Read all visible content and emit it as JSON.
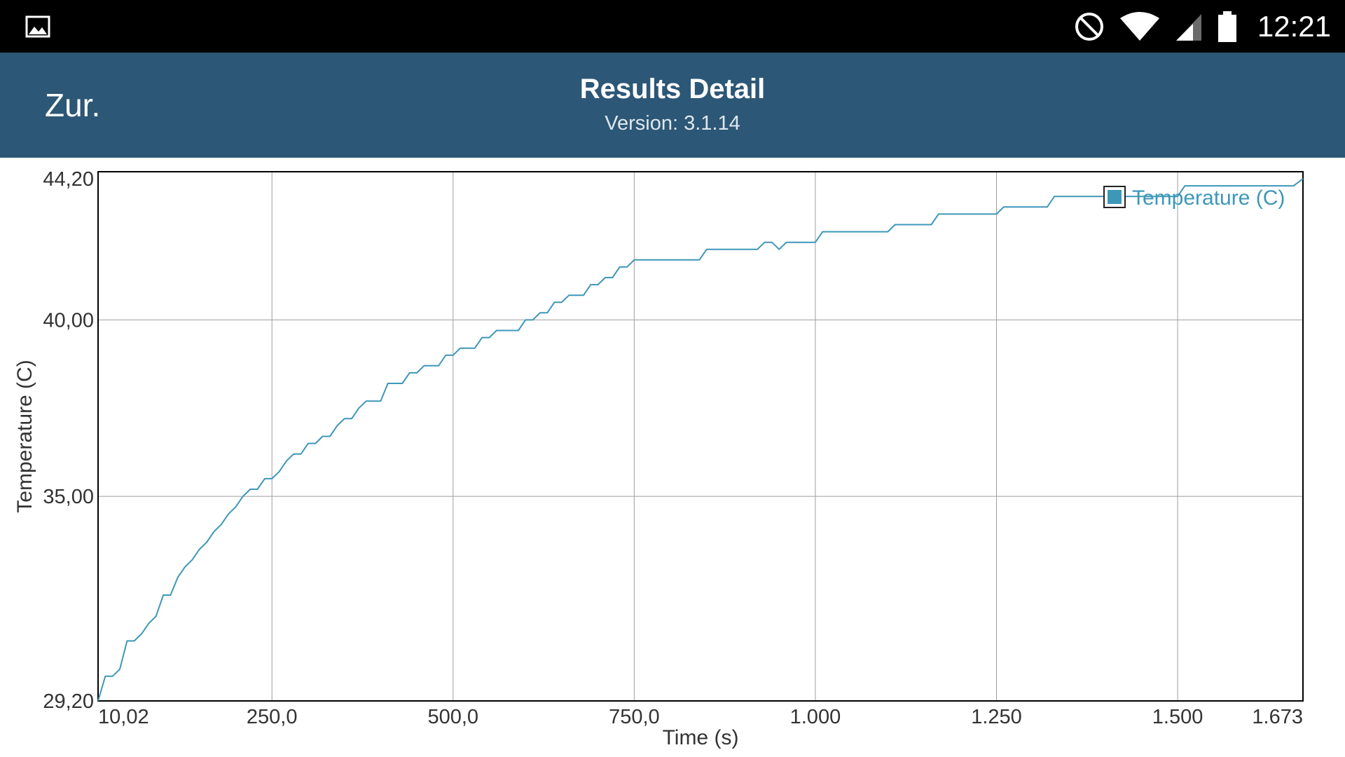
{
  "status_bar": {
    "time": "12:21",
    "icons": [
      "image-notification-icon",
      "do-not-disturb-icon",
      "wifi-icon",
      "cell-signal-icon",
      "battery-icon"
    ]
  },
  "toolbar": {
    "back_label": "Zur.",
    "title": "Results Detail",
    "subtitle": "Version: 3.1.14"
  },
  "colors": {
    "toolbar": "#2c5776",
    "series": "#3d97b9"
  },
  "chart_data": {
    "type": "line",
    "title": "",
    "xlabel": "Time (s)",
    "ylabel": "Temperature (C)",
    "xlim": [
      10.02,
      1673
    ],
    "ylim": [
      29.2,
      44.2
    ],
    "x_ticks": [
      {
        "value": 10.02,
        "label": "10,02"
      },
      {
        "value": 250,
        "label": "250,0"
      },
      {
        "value": 500,
        "label": "500,0"
      },
      {
        "value": 750,
        "label": "750,0"
      },
      {
        "value": 1000,
        "label": "1.000"
      },
      {
        "value": 1250,
        "label": "1.250"
      },
      {
        "value": 1500,
        "label": "1.500"
      },
      {
        "value": 1673,
        "label": "1.673"
      }
    ],
    "y_ticks": [
      {
        "value": 29.2,
        "label": "29,20"
      },
      {
        "value": 35,
        "label": "35,00"
      },
      {
        "value": 40,
        "label": "40,00"
      },
      {
        "value": 44.2,
        "label": "44,20"
      }
    ],
    "grid": true,
    "legend": "top-right",
    "series": [
      {
        "name": "Temperature (C)",
        "color": "#3d97b9",
        "points": [
          [
            10,
            29.2
          ],
          [
            20,
            29.9
          ],
          [
            30,
            29.9
          ],
          [
            40,
            30.1
          ],
          [
            50,
            30.9
          ],
          [
            60,
            30.9
          ],
          [
            70,
            31.1
          ],
          [
            80,
            31.4
          ],
          [
            90,
            31.6
          ],
          [
            100,
            32.2
          ],
          [
            110,
            32.2
          ],
          [
            120,
            32.7
          ],
          [
            130,
            33.0
          ],
          [
            140,
            33.2
          ],
          [
            150,
            33.5
          ],
          [
            160,
            33.7
          ],
          [
            170,
            34.0
          ],
          [
            180,
            34.2
          ],
          [
            190,
            34.5
          ],
          [
            200,
            34.7
          ],
          [
            210,
            35.0
          ],
          [
            220,
            35.2
          ],
          [
            230,
            35.2
          ],
          [
            240,
            35.5
          ],
          [
            250,
            35.5
          ],
          [
            260,
            35.7
          ],
          [
            270,
            36.0
          ],
          [
            280,
            36.2
          ],
          [
            290,
            36.2
          ],
          [
            300,
            36.5
          ],
          [
            310,
            36.5
          ],
          [
            320,
            36.7
          ],
          [
            330,
            36.7
          ],
          [
            340,
            37.0
          ],
          [
            350,
            37.2
          ],
          [
            360,
            37.2
          ],
          [
            370,
            37.5
          ],
          [
            380,
            37.7
          ],
          [
            390,
            37.7
          ],
          [
            400,
            37.7
          ],
          [
            410,
            38.2
          ],
          [
            420,
            38.2
          ],
          [
            430,
            38.2
          ],
          [
            440,
            38.5
          ],
          [
            450,
            38.5
          ],
          [
            460,
            38.7
          ],
          [
            470,
            38.7
          ],
          [
            480,
            38.7
          ],
          [
            490,
            39.0
          ],
          [
            500,
            39.0
          ],
          [
            510,
            39.2
          ],
          [
            520,
            39.2
          ],
          [
            530,
            39.2
          ],
          [
            540,
            39.5
          ],
          [
            550,
            39.5
          ],
          [
            560,
            39.7
          ],
          [
            570,
            39.7
          ],
          [
            580,
            39.7
          ],
          [
            590,
            39.7
          ],
          [
            600,
            40.0
          ],
          [
            610,
            40.0
          ],
          [
            620,
            40.2
          ],
          [
            630,
            40.2
          ],
          [
            640,
            40.5
          ],
          [
            650,
            40.5
          ],
          [
            660,
            40.7
          ],
          [
            670,
            40.7
          ],
          [
            680,
            40.7
          ],
          [
            690,
            41.0
          ],
          [
            700,
            41.0
          ],
          [
            710,
            41.2
          ],
          [
            720,
            41.2
          ],
          [
            730,
            41.5
          ],
          [
            740,
            41.5
          ],
          [
            750,
            41.7
          ],
          [
            840,
            41.7
          ],
          [
            850,
            42.0
          ],
          [
            920,
            42.0
          ],
          [
            930,
            42.2
          ],
          [
            940,
            42.2
          ],
          [
            950,
            42.0
          ],
          [
            960,
            42.2
          ],
          [
            1000,
            42.2
          ],
          [
            1010,
            42.5
          ],
          [
            1100,
            42.5
          ],
          [
            1110,
            42.7
          ],
          [
            1160,
            42.7
          ],
          [
            1170,
            43.0
          ],
          [
            1250,
            43.0
          ],
          [
            1260,
            43.2
          ],
          [
            1320,
            43.2
          ],
          [
            1330,
            43.5
          ],
          [
            1500,
            43.5
          ],
          [
            1510,
            43.8
          ],
          [
            1660,
            43.8
          ],
          [
            1673,
            44.0
          ]
        ]
      }
    ]
  }
}
